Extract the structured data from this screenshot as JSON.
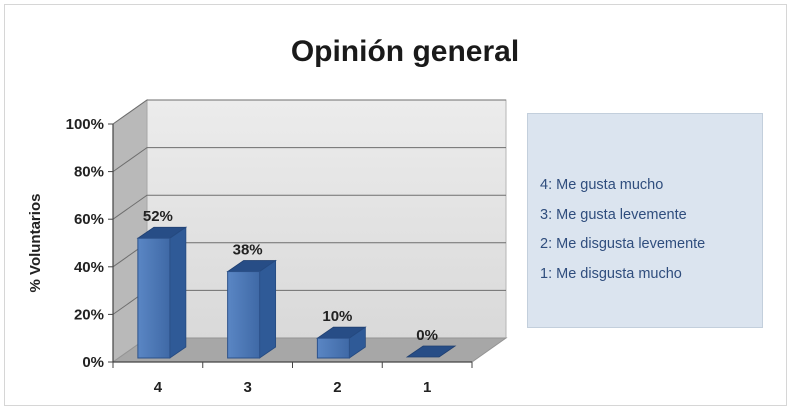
{
  "chart_data": {
    "type": "bar",
    "title": "Opinión general",
    "ylabel": "% Voluntarios",
    "xlabel": "",
    "categories": [
      "4",
      "3",
      "2",
      "1"
    ],
    "values": [
      52,
      38,
      10,
      0
    ],
    "value_labels": [
      "52%",
      "38%",
      "10%",
      "0%"
    ],
    "y_ticks": [
      "0%",
      "20%",
      "40%",
      "60%",
      "80%",
      "100%"
    ],
    "ylim": [
      0,
      100
    ],
    "grid": true,
    "style": "3d-column",
    "bar_color": "#4f7ab8",
    "legend_position": "right",
    "legend_entries": [
      "4: Me gusta mucho",
      "3: Me gusta levemente",
      "2: Me disgusta levemente",
      "1: Me disgusta mucho"
    ]
  }
}
